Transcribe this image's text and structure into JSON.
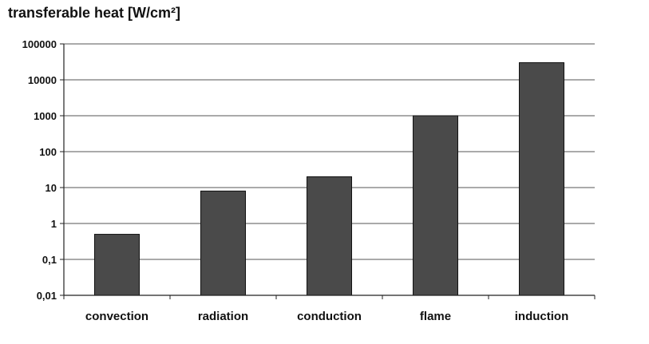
{
  "chart_data": {
    "type": "bar",
    "title": "transferable heat [W/cm²]",
    "xlabel": "",
    "ylabel": "",
    "yscale": "log",
    "ylim": [
      0.01,
      100000
    ],
    "grid": true,
    "legend": "none",
    "categories": [
      "convection",
      "radiation",
      "conduction",
      "flame",
      "induction"
    ],
    "values": [
      0.5,
      8,
      20,
      1000,
      30000
    ],
    "ytick_values": [
      0.01,
      0.1,
      1,
      10,
      100,
      1000,
      10000,
      100000
    ],
    "ytick_labels": [
      "0,01",
      "0,1",
      "1",
      "10",
      "100",
      "1000",
      "10000",
      "100000"
    ],
    "colors": {
      "bar_fill": "#4a4a4a",
      "bar_stroke": "#111111",
      "gridline": "#555555",
      "axis": "#222222"
    }
  }
}
